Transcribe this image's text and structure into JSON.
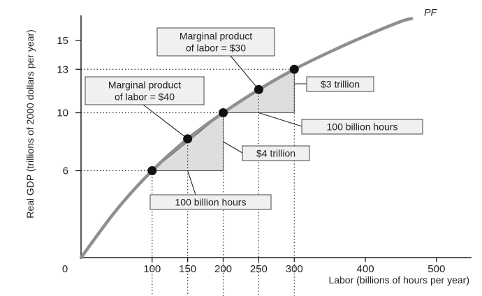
{
  "chart_data": {
    "type": "line",
    "title": "",
    "xlabel": "Labor (billions of hours per year)",
    "ylabel": "Real GDP (trillions of 2000 dollars per year)",
    "xlim": [
      0,
      550
    ],
    "ylim": [
      0,
      17.5
    ],
    "origin_label": "0",
    "x_ticks": [
      100,
      150,
      200,
      250,
      300,
      400,
      500
    ],
    "y_ticks": [
      6,
      10,
      13,
      15
    ],
    "series": [
      {
        "name": "PF",
        "x": [
          0,
          50,
          100,
          150,
          200,
          250,
          300,
          350,
          400,
          450,
          465
        ],
        "y": [
          0,
          3.3,
          6.0,
          8.2,
          10.0,
          11.6,
          13.0,
          14.2,
          15.3,
          16.3,
          16.5
        ]
      }
    ],
    "points": [
      {
        "x": 100,
        "y": 6.0
      },
      {
        "x": 150,
        "y": 8.2
      },
      {
        "x": 200,
        "y": 10.0
      },
      {
        "x": 250,
        "y": 11.6
      },
      {
        "x": 300,
        "y": 13.0
      }
    ],
    "triangles": [
      {
        "x0": 100,
        "y0": 6,
        "x1": 200,
        "y1": 10
      },
      {
        "x0": 200,
        "y0": 10,
        "x1": 300,
        "y1": 13
      }
    ],
    "grid": false,
    "legend": "none",
    "annotations": [
      {
        "id": "mp40",
        "lines": [
          "Marginal product",
          "of labor = $40"
        ],
        "target_x": 150,
        "target_y": 8.2
      },
      {
        "id": "mp30",
        "lines": [
          "Marginal product",
          "of labor = $30"
        ],
        "target_x": 250,
        "target_y": 11.6
      },
      {
        "id": "t4",
        "lines": [
          "$4 trillion"
        ],
        "target_x": 200,
        "target_y": 8.0
      },
      {
        "id": "t3",
        "lines": [
          "$3 trillion"
        ],
        "target_x": 300,
        "target_y": 12.0
      },
      {
        "id": "h1",
        "lines": [
          "100 billion hours"
        ],
        "target_x": 150,
        "target_y": 6.0
      },
      {
        "id": "h2",
        "lines": [
          "100 billion hours"
        ],
        "target_x": 250,
        "target_y": 10.0
      }
    ]
  }
}
